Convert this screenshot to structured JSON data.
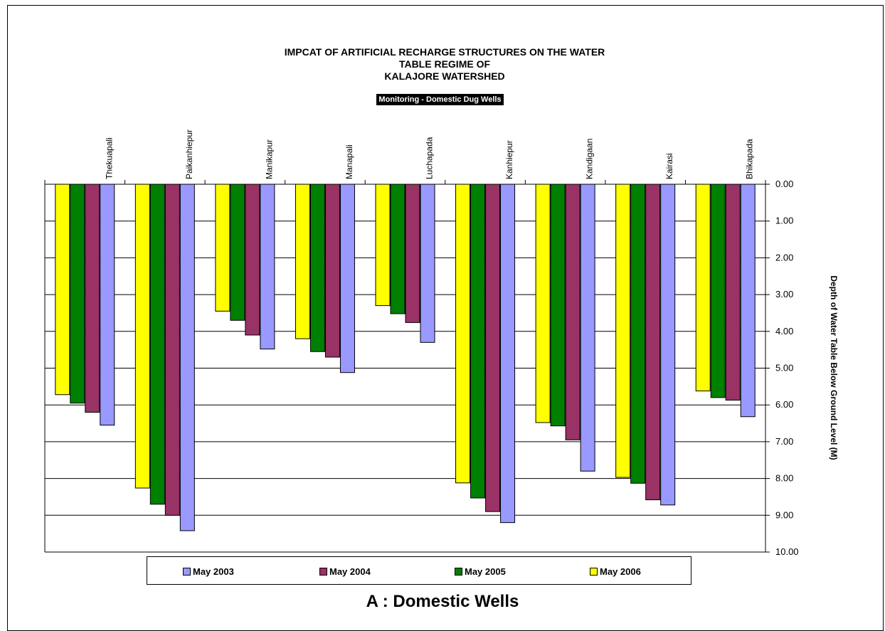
{
  "caption": "A : Domestic Wells",
  "colors": {
    "may2003": "#9999ff",
    "may2004": "#993366",
    "may2005": "#008000",
    "may2006": "#ffff00"
  },
  "chart_data": {
    "type": "bar",
    "title_lines": [
      "IMPCAT OF ARTIFICIAL RECHARGE STRUCTURES ON THE WATER",
      "TABLE REGIME OF",
      "KALAJORE WATERSHED"
    ],
    "subtitle": "Monitoring - Domestic Dug Wells",
    "ylabel": "Depth of Water Table Below Ground Level (M)",
    "ylim": [
      0,
      10
    ],
    "y_inverted": true,
    "y_ticks": [
      "0.00",
      "1.00",
      "2.00",
      "3.00",
      "4.00",
      "5.00",
      "6.00",
      "7.00",
      "8.00",
      "9.00",
      "10.00"
    ],
    "grid": true,
    "legend_position": "bottom",
    "categories": [
      "Thekuapali",
      "Paikanhiepur",
      "Manikapur",
      "Manapali",
      "Luchapada",
      "Kanhiepur",
      "Kandigaan",
      "Kairasi",
      "Bhikapada"
    ],
    "series": [
      {
        "name": "May 2006",
        "color": "#ffff00",
        "values": [
          5.72,
          8.26,
          3.45,
          4.2,
          3.3,
          8.12,
          6.48,
          7.97,
          5.62
        ]
      },
      {
        "name": "May 2005",
        "color": "#008000",
        "values": [
          5.95,
          8.7,
          3.7,
          4.55,
          3.52,
          8.53,
          6.57,
          8.13,
          5.8
        ]
      },
      {
        "name": "May 2004",
        "color": "#993366",
        "values": [
          6.2,
          9.0,
          4.1,
          4.7,
          3.76,
          8.9,
          6.95,
          8.58,
          5.87
        ]
      },
      {
        "name": "May 2003",
        "color": "#9999ff",
        "values": [
          6.55,
          9.42,
          4.48,
          5.12,
          4.3,
          9.2,
          7.8,
          8.72,
          6.32
        ]
      }
    ],
    "legend_order": [
      "May 2003",
      "May 2004",
      "May 2005",
      "May 2006"
    ]
  }
}
